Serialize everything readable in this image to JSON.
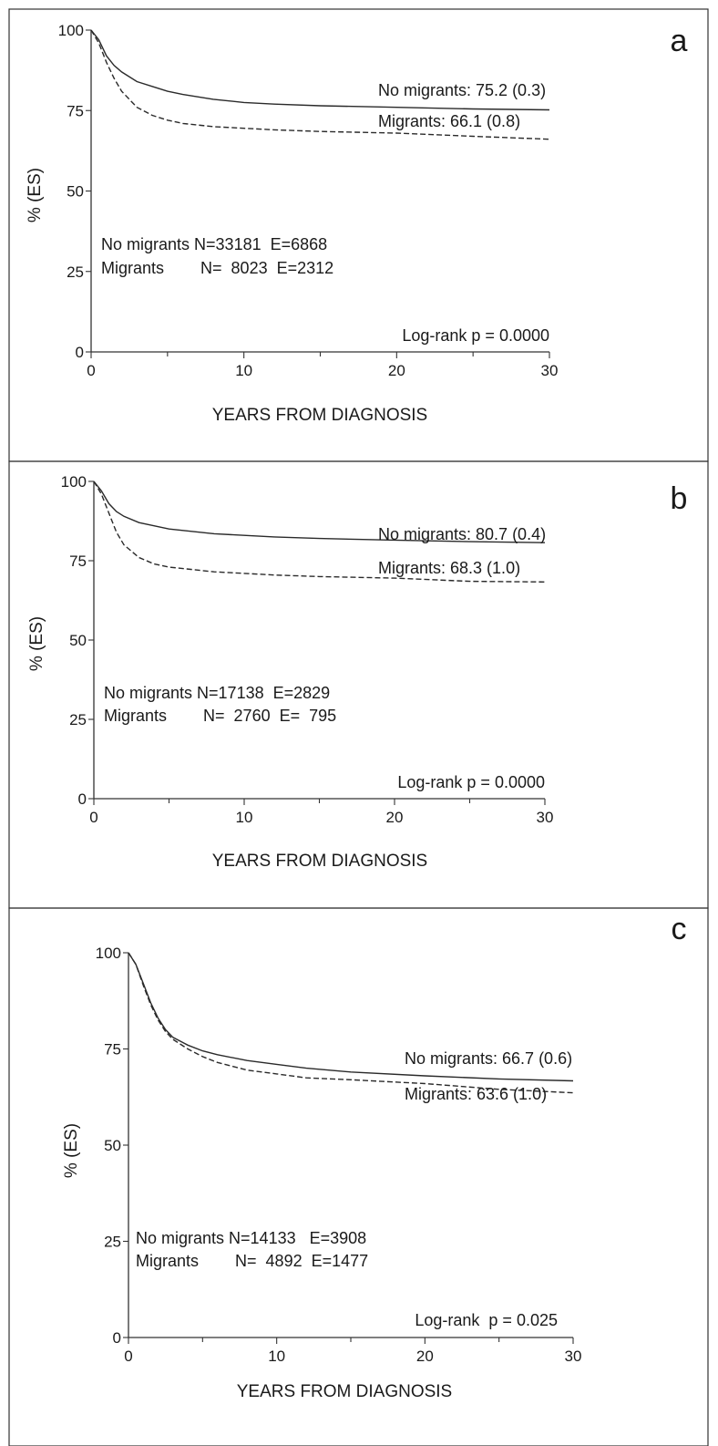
{
  "chart_data": [
    {
      "type": "line",
      "panel_label": "a",
      "ylabel": "% (ES)",
      "xlabel": "YEARS FROM DIAGNOSIS",
      "xlim": [
        0,
        30
      ],
      "ylim": [
        0,
        100
      ],
      "x_ticks": [
        0,
        10,
        20,
        30
      ],
      "y_ticks": [
        0,
        25,
        50,
        75,
        100
      ],
      "series": [
        {
          "name": "No migrants",
          "style": "solid",
          "x": [
            0,
            0.5,
            1,
            1.5,
            2,
            3,
            4,
            5,
            6,
            8,
            10,
            12,
            15,
            20,
            25,
            30
          ],
          "y": [
            100,
            97,
            92,
            89,
            87,
            84,
            82.5,
            81,
            80,
            78.5,
            77.5,
            77,
            76.5,
            76,
            75.5,
            75.2
          ]
        },
        {
          "name": "Migrants",
          "style": "dashed",
          "x": [
            0,
            0.5,
            1,
            1.5,
            2,
            3,
            4,
            5,
            6,
            8,
            10,
            12,
            15,
            20,
            25,
            30
          ],
          "y": [
            100,
            96,
            90,
            85,
            81,
            76,
            73.5,
            72,
            71,
            70,
            69.5,
            69,
            68.5,
            68,
            67,
            66.1
          ]
        }
      ],
      "annotations": [
        "No migrants: 75.2 (0.3)",
        "Migrants: 66.1 (0.8)"
      ],
      "counts": [
        "No migrants N=33181  E=6868",
        "Migrants        N=  8023  E=2312"
      ],
      "logrank": "Log-rank p = 0.0000"
    },
    {
      "type": "line",
      "panel_label": "b",
      "ylabel": "% (ES)",
      "xlabel": "YEARS FROM DIAGNOSIS",
      "xlim": [
        0,
        30
      ],
      "ylim": [
        0,
        100
      ],
      "x_ticks": [
        0,
        10,
        20,
        30
      ],
      "y_ticks": [
        0,
        25,
        50,
        75,
        100
      ],
      "series": [
        {
          "name": "No migrants",
          "style": "solid",
          "x": [
            0,
            0.5,
            1,
            1.5,
            2,
            3,
            4,
            5,
            6,
            8,
            10,
            12,
            15,
            20,
            25,
            30
          ],
          "y": [
            100,
            97,
            93,
            90.5,
            89,
            87,
            86,
            85,
            84.5,
            83.5,
            83,
            82.5,
            82,
            81.5,
            81,
            80.7
          ]
        },
        {
          "name": "Migrants",
          "style": "dashed",
          "x": [
            0,
            0.5,
            1,
            1.5,
            2,
            3,
            4,
            5,
            6,
            8,
            10,
            12,
            15,
            20,
            25,
            30
          ],
          "y": [
            100,
            96,
            90,
            84,
            80,
            76,
            74,
            73,
            72.5,
            71.5,
            71,
            70.5,
            70,
            69.5,
            68.5,
            68.3
          ]
        }
      ],
      "annotations": [
        "No migrants: 80.7 (0.4)",
        "Migrants: 68.3 (1.0)"
      ],
      "counts": [
        "No migrants N=17138  E=2829",
        "Migrants        N=  2760  E=  795"
      ],
      "logrank": "Log-rank p = 0.0000"
    },
    {
      "type": "line",
      "panel_label": "c",
      "ylabel": "% (ES)",
      "xlabel": "YEARS FROM DIAGNOSIS",
      "xlim": [
        0,
        30
      ],
      "ylim": [
        0,
        100
      ],
      "x_ticks": [
        0,
        10,
        20,
        30
      ],
      "y_ticks": [
        0,
        25,
        50,
        75,
        100
      ],
      "series": [
        {
          "name": "No migrants",
          "style": "solid",
          "x": [
            0,
            0.5,
            1,
            1.5,
            2,
            2.5,
            3,
            4,
            5,
            6,
            8,
            10,
            12,
            15,
            20,
            25,
            30
          ],
          "y": [
            100,
            97,
            92,
            87,
            83,
            80,
            78,
            76,
            74.5,
            73.5,
            72,
            71,
            70,
            69,
            68,
            67.2,
            66.7
          ]
        },
        {
          "name": "Migrants",
          "style": "dashed",
          "x": [
            0,
            0.5,
            1,
            1.5,
            2,
            2.5,
            3,
            4,
            5,
            6,
            8,
            10,
            12,
            15,
            20,
            25,
            30
          ],
          "y": [
            100,
            97,
            91.5,
            86.5,
            82.5,
            79.5,
            77.5,
            75,
            73,
            71.5,
            69.5,
            68.5,
            67.5,
            67,
            66,
            64.5,
            63.6
          ]
        }
      ],
      "annotations": [
        "No migrants: 66.7 (0.6)",
        "Migrants: 63.6 (1.0)"
      ],
      "counts": [
        "No migrants N=14133   E=3908",
        "Migrants        N=  4892  E=1477"
      ],
      "logrank": "Log-rank  p = 0.025"
    }
  ]
}
